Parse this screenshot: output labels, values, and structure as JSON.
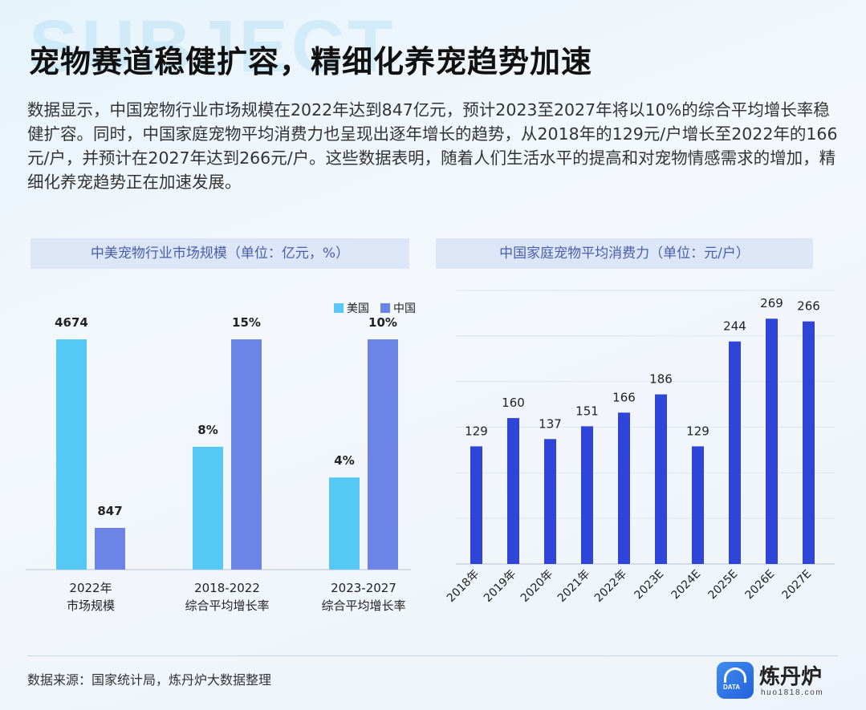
{
  "watermark": "SUBJECT",
  "title": "宠物赛道稳健扩容，精细化养宠趋势加速",
  "body": "数据显示，中国宠物行业市场规模在2022年达到847亿元，预计2023至2027年将以10%的综合平均增长率稳健扩容。同时，中国家庭宠物平均消费力也呈现出逐年增长的趋势，从2018年的129元/户增长至2022年的166元/户，并预计在2027年达到266元/户。这些数据表明，随着人们生活水平的提高和对宠物情感需求的增加，精细化养宠趋势正在加速发展。",
  "chart_data": [
    {
      "type": "bar",
      "title": "中美宠物行业市场规模（单位：亿元，%）",
      "categories": [
        [
          "2022年",
          "市场规模"
        ],
        [
          "2018-2022",
          "综合平均增长率"
        ],
        [
          "2023-2027",
          "综合平均增长率"
        ]
      ],
      "series": [
        {
          "name": "美国",
          "color": "#55c8f5",
          "values": [
            4674,
            8,
            4
          ],
          "labels": [
            "4674",
            "8%",
            "4%"
          ]
        },
        {
          "name": "中国",
          "color": "#6c84e6",
          "values": [
            847,
            15,
            10
          ],
          "labels": [
            "847",
            "15%",
            "10%"
          ]
        }
      ],
      "note": "groups use independent scales (market size vs growth rate)",
      "legend": "top-right",
      "grid": false
    },
    {
      "type": "bar",
      "title": "中国家庭宠物平均消费力（单位：元/户）",
      "categories": [
        "2018年",
        "2019年",
        "2020年",
        "2021年",
        "2022年",
        "2023E",
        "2024E",
        "2025E",
        "2026E",
        "2027E"
      ],
      "values": [
        129,
        160,
        137,
        151,
        166,
        186,
        129,
        244,
        269,
        266
      ],
      "color": "#2f45d8",
      "ylim": [
        0,
        300
      ],
      "grid": true,
      "xtick_rotation": -45
    }
  ],
  "footer": {
    "source": "数据来源：国家统计局，炼丹炉大数据整理",
    "logo_name": "炼丹炉",
    "logo_tag": "DATA",
    "logo_url": "huo1818.com"
  }
}
